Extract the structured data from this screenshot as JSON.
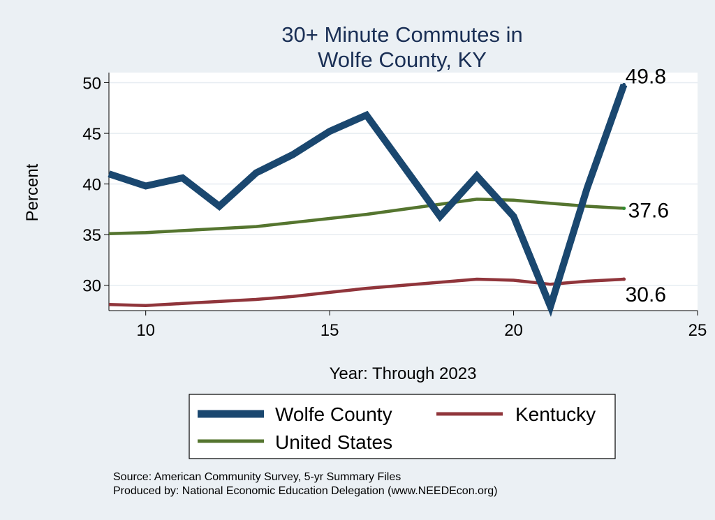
{
  "chart_data": {
    "type": "line",
    "title": [
      "30+ Minute Commutes in",
      "Wolfe County, KY"
    ],
    "xlabel": "Year: Through 2023",
    "ylabel": "Percent",
    "xlim": [
      9,
      25
    ],
    "ylim": [
      27.5,
      51
    ],
    "xticks": [
      10,
      15,
      20,
      25
    ],
    "yticks": [
      30,
      35,
      40,
      45,
      50
    ],
    "grid": true,
    "legend_position": "bottom",
    "series": [
      {
        "name": "Wolfe County",
        "color": "#1a476f",
        "x": [
          9,
          10,
          11,
          12,
          13,
          14,
          15,
          16,
          17,
          18,
          19,
          20,
          21,
          22,
          23
        ],
        "y": [
          41.0,
          39.8,
          40.6,
          37.8,
          41.1,
          42.9,
          45.2,
          46.8,
          41.8,
          36.8,
          40.8,
          36.8,
          27.9,
          39.6,
          49.8
        ],
        "end_label": "49.8"
      },
      {
        "name": "Kentucky",
        "color": "#90353b",
        "x": [
          9,
          10,
          11,
          12,
          13,
          14,
          15,
          16,
          17,
          18,
          19,
          20,
          21,
          22,
          23
        ],
        "y": [
          28.1,
          28.0,
          28.2,
          28.4,
          28.6,
          28.9,
          29.3,
          29.7,
          30.0,
          30.3,
          30.6,
          30.5,
          30.1,
          30.4,
          30.6
        ],
        "end_label": "30.6"
      },
      {
        "name": "United States",
        "color": "#55752f",
        "x": [
          9,
          10,
          11,
          12,
          13,
          14,
          15,
          16,
          17,
          18,
          19,
          20,
          21,
          22,
          23
        ],
        "y": [
          35.1,
          35.2,
          35.4,
          35.6,
          35.8,
          36.2,
          36.6,
          37.0,
          37.5,
          38.0,
          38.5,
          38.4,
          38.1,
          37.8,
          37.6
        ],
        "end_label": "37.6"
      }
    ],
    "notes": [
      "Source: American Community Survey, 5-yr Summary Files",
      "Produced by: National Economic Education Delegation (www.NEEDEcon.org)"
    ]
  }
}
